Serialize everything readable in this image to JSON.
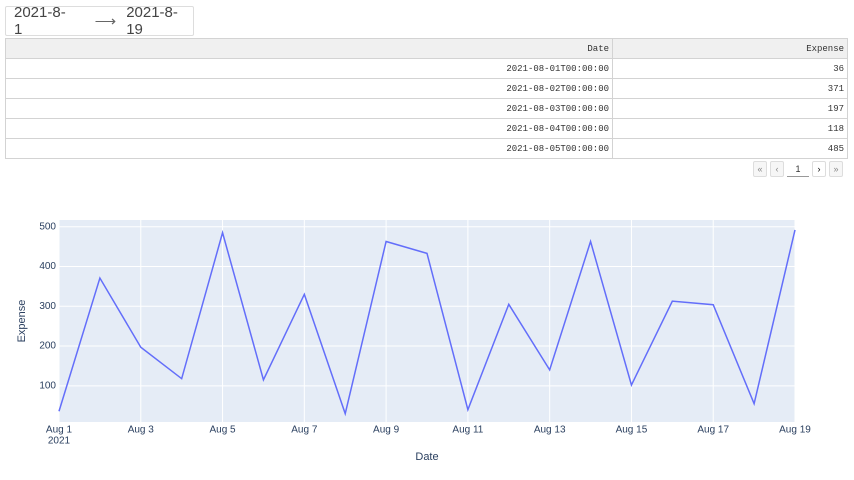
{
  "date_picker": {
    "start": "2021-8-1",
    "end": "2021-8-19"
  },
  "table": {
    "columns": [
      "Date",
      "Expense"
    ],
    "rows": [
      [
        "2021-08-01T00:00:00",
        36
      ],
      [
        "2021-08-02T00:00:00",
        371
      ],
      [
        "2021-08-03T00:00:00",
        197
      ],
      [
        "2021-08-04T00:00:00",
        118
      ],
      [
        "2021-08-05T00:00:00",
        485
      ]
    ]
  },
  "pagination": {
    "page": "1"
  },
  "chart_data": {
    "type": "line",
    "x_label": "Date",
    "y_label": "Expense",
    "x": [
      "2021-08-01",
      "2021-08-02",
      "2021-08-03",
      "2021-08-04",
      "2021-08-05",
      "2021-08-06",
      "2021-08-07",
      "2021-08-08",
      "2021-08-09",
      "2021-08-10",
      "2021-08-11",
      "2021-08-12",
      "2021-08-13",
      "2021-08-14",
      "2021-08-15",
      "2021-08-16",
      "2021-08-17",
      "2021-08-18",
      "2021-08-19"
    ],
    "series": [
      {
        "name": "Expense",
        "color": "#636efa",
        "values": [
          36,
          371,
          197,
          118,
          485,
          115,
          330,
          30,
          463,
          433,
          40,
          305,
          140,
          463,
          102,
          313,
          304,
          55,
          492
        ]
      }
    ],
    "xlim": [
      "2021-08-01",
      "2021-08-19"
    ],
    "xticks": [
      {
        "value": "2021-08-01",
        "label": "Aug 1",
        "sublabel": "2021"
      },
      {
        "value": "2021-08-03",
        "label": "Aug 3"
      },
      {
        "value": "2021-08-05",
        "label": "Aug 5"
      },
      {
        "value": "2021-08-07",
        "label": "Aug 7"
      },
      {
        "value": "2021-08-09",
        "label": "Aug 9"
      },
      {
        "value": "2021-08-11",
        "label": "Aug 11"
      },
      {
        "value": "2021-08-13",
        "label": "Aug 13"
      },
      {
        "value": "2021-08-15",
        "label": "Aug 15"
      },
      {
        "value": "2021-08-17",
        "label": "Aug 17"
      },
      {
        "value": "2021-08-19",
        "label": "Aug 19"
      }
    ],
    "ylim": [
      9,
      517
    ],
    "yticks": [
      100,
      200,
      300,
      400,
      500
    ],
    "grid": true,
    "plot_bg": "#e5ecf6"
  }
}
